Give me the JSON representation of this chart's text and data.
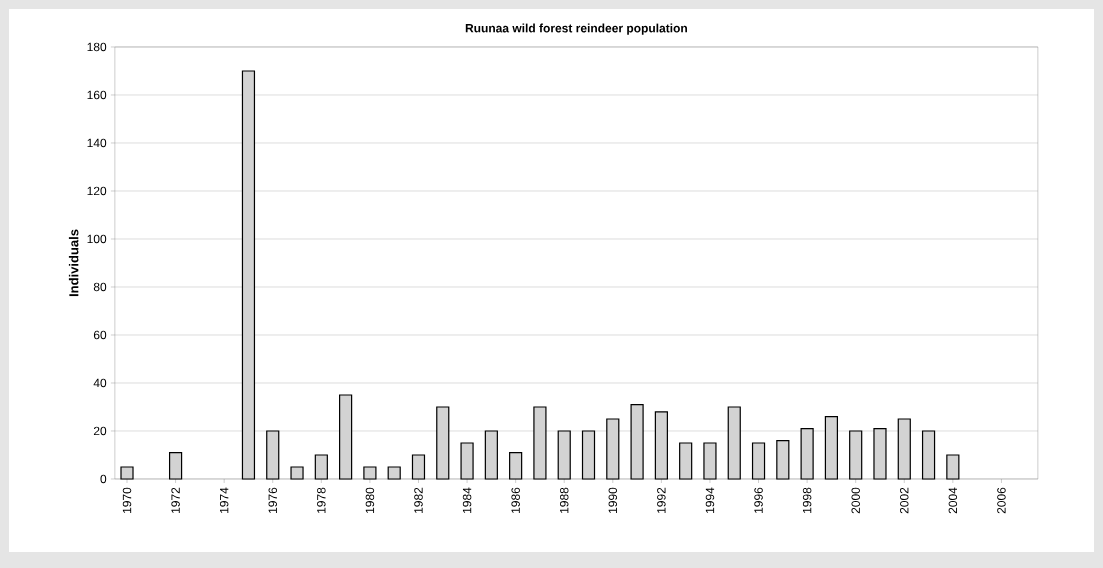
{
  "chart_data": {
    "type": "bar",
    "title": "Ruunaa wild forest reindeer population",
    "ylabel": "Individuals",
    "categories": [
      "1970",
      null,
      "1972",
      null,
      "1974",
      null,
      "1976",
      null,
      "1978",
      null,
      "1980",
      null,
      "1982",
      null,
      "1984",
      null,
      "1986",
      null,
      "1988",
      null,
      "1990",
      null,
      "1992",
      null,
      "1994",
      null,
      "1996",
      null,
      "1998",
      null,
      "2000",
      null,
      "2002",
      null,
      "2004",
      null,
      "2006",
      null
    ],
    "values": [
      5,
      null,
      11,
      null,
      null,
      170,
      20,
      5,
      10,
      35,
      5,
      5,
      10,
      30,
      15,
      20,
      11,
      30,
      20,
      20,
      25,
      31,
      28,
      15,
      15,
      30,
      15,
      16,
      21,
      26,
      20,
      21,
      25,
      20,
      10,
      null,
      null,
      null
    ],
    "color": "#d3d3d3",
    "ylim": [
      0,
      180
    ],
    "yticks": [
      0,
      20,
      40,
      60,
      80,
      100,
      120,
      140,
      160,
      180
    ],
    "grid": "y"
  }
}
